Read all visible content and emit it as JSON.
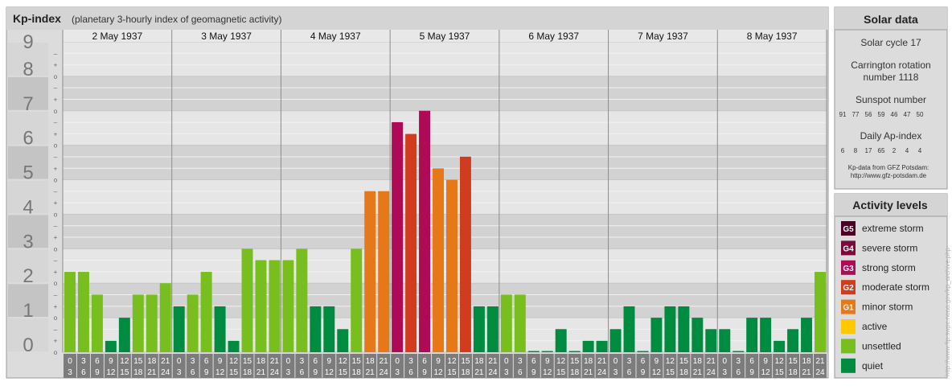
{
  "chart": {
    "title": "Kp-index",
    "subtitle": "(planetary 3-hourly index of geomagnetic activity)",
    "watermark": "http://www.ftp.swpc.noaa.gov/kp_archive.php",
    "y_labels": [
      "0",
      "1",
      "2",
      "3",
      "4",
      "5",
      "6",
      "7",
      "8",
      "9"
    ],
    "sub_marks": [
      "o",
      "+",
      "–"
    ],
    "colors": {
      "quiet": "#008c40",
      "unsettled": "#78be1e",
      "active": "#ffc800",
      "G1": "#e67819",
      "G2": "#d23c1e",
      "G3": "#af0a55",
      "G4": "#780a3c",
      "G5": "#4b0023"
    }
  },
  "chart_data": {
    "type": "bar",
    "ylim": [
      0,
      9
    ],
    "days": [
      "2 May 1937",
      "3 May 1937",
      "4 May 1937",
      "5 May 1937",
      "6 May 1937",
      "7 May 1937",
      "8 May 1937"
    ],
    "interval_labels": [
      [
        "0",
        "3"
      ],
      [
        "3",
        "6"
      ],
      [
        "6",
        "9"
      ],
      [
        "9",
        "12"
      ],
      [
        "12",
        "15"
      ],
      [
        "15",
        "18"
      ],
      [
        "18",
        "21"
      ],
      [
        "21",
        "24"
      ]
    ],
    "values": [
      [
        2.33,
        2.33,
        1.67,
        0.33,
        1.0,
        1.67,
        1.67,
        2.0
      ],
      [
        1.33,
        1.67,
        2.33,
        1.33,
        0.33,
        3.0,
        2.67,
        2.67
      ],
      [
        2.67,
        3.0,
        1.33,
        1.33,
        0.67,
        3.0,
        4.67,
        4.67
      ],
      [
        6.67,
        6.33,
        7.0,
        5.33,
        5.0,
        5.67,
        1.33,
        1.33
      ],
      [
        1.67,
        1.67,
        0.0,
        0.0,
        0.67,
        0.0,
        0.33,
        0.33
      ],
      [
        0.67,
        1.33,
        0.0,
        1.0,
        1.33,
        1.33,
        1.0,
        0.67
      ],
      [
        0.67,
        0.0,
        1.0,
        1.0,
        0.33,
        0.67,
        1.0,
        2.33
      ]
    ]
  },
  "solar": {
    "title": "Solar data",
    "cycle": "Solar cycle 17",
    "carrington_1": "Carrington rotation",
    "carrington_2": "number 1118",
    "sunspot_title": "Sunspot number",
    "sunspot_values": [
      "91",
      "77",
      "56",
      "59",
      "46",
      "47",
      "50"
    ],
    "ap_title": "Daily Ap-index",
    "ap_values": [
      "6",
      "8",
      "17",
      "65",
      "2",
      "4",
      "4"
    ],
    "source_1": "Kp-data from GFZ Potsdam:",
    "source_2": "http://www.gfz-potsdam.de"
  },
  "levels": {
    "title": "Activity levels",
    "items": [
      {
        "badge": "G5",
        "label": "extreme storm",
        "color": "#4b0023"
      },
      {
        "badge": "G4",
        "label": "severe storm",
        "color": "#780a3c"
      },
      {
        "badge": "G3",
        "label": "strong storm",
        "color": "#af0a55"
      },
      {
        "badge": "G2",
        "label": "moderate storm",
        "color": "#d23c1e"
      },
      {
        "badge": "G1",
        "label": "minor storm",
        "color": "#e67819"
      },
      {
        "badge": "",
        "label": "active",
        "color": "#ffc800"
      },
      {
        "badge": "",
        "label": "unsettled",
        "color": "#78be1e"
      },
      {
        "badge": "",
        "label": "quiet",
        "color": "#008c40"
      }
    ]
  }
}
